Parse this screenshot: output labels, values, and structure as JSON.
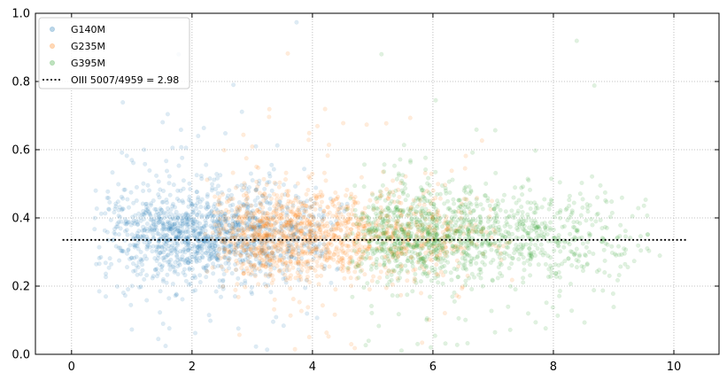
{
  "chart_data": {
    "type": "scatter",
    "title": "",
    "xlabel": "",
    "ylabel": "",
    "xlim": [
      -0.6,
      10.75
    ],
    "ylim": [
      0.0,
      1.0
    ],
    "x_ticks": [
      0,
      2,
      4,
      6,
      8,
      10
    ],
    "y_ticks": [
      0.0,
      0.2,
      0.4,
      0.6,
      0.8,
      1.0
    ],
    "x_tick_labels": [
      "0",
      "2",
      "4",
      "6",
      "8",
      "10"
    ],
    "y_tick_labels": [
      "0.0",
      "0.2",
      "0.4",
      "0.6",
      "0.8",
      "1.0"
    ],
    "grid": true,
    "legend_position": "top-left",
    "series": [
      {
        "name": "G140M",
        "color": "#1f77b4",
        "alpha": 0.15,
        "x_range": [
          0.3,
          4.6
        ],
        "x_peak": 1.9,
        "y_center": 0.35,
        "y_spread": 0.09,
        "approx_points": 1400
      },
      {
        "name": "G235M",
        "color": "#ff7f0e",
        "alpha": 0.15,
        "x_range": [
          2.2,
          7.4
        ],
        "x_peak": 3.1,
        "y_center": 0.35,
        "y_spread": 0.09,
        "approx_points": 1400
      },
      {
        "name": "G395M",
        "color": "#2ca02c",
        "alpha": 0.15,
        "x_range": [
          4.5,
          9.8
        ],
        "x_peak": 5.5,
        "y_center": 0.35,
        "y_spread": 0.09,
        "approx_points": 1300
      }
    ],
    "reference_line": {
      "label": "OIII 5007/4959 = 2.98",
      "y": 0.3356,
      "x_start": -0.15,
      "x_end": 10.2,
      "style": "dotted",
      "color": "#000000"
    }
  }
}
